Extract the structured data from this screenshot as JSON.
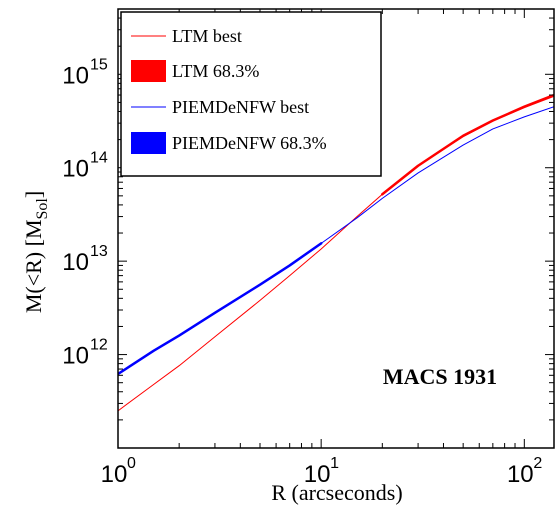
{
  "chart_data": {
    "type": "line",
    "xlabel": "R (arcseconds)",
    "ylabel_main": "M(<R)  [M",
    "ylabel_sub": "Sol",
    "ylabel_close": "]",
    "annotation": "MACS 1931",
    "xscale": "log",
    "yscale": "log",
    "xlim": [
      1,
      140
    ],
    "ylim": [
      100000000000.0,
      5000000000000000.0
    ],
    "grid": false,
    "legend_position": "top-left",
    "x_ticks": [
      {
        "value": 1,
        "base": "10",
        "exp": "0"
      },
      {
        "value": 10,
        "base": "10",
        "exp": "1"
      },
      {
        "value": 100,
        "base": "10",
        "exp": "2"
      }
    ],
    "y_ticks": [
      {
        "value": 1000000000000.0,
        "base": "10",
        "exp": "12"
      },
      {
        "value": 10000000000000.0,
        "base": "10",
        "exp": "13"
      },
      {
        "value": 100000000000000.0,
        "base": "10",
        "exp": "14"
      },
      {
        "value": 1000000000000000.0,
        "base": "10",
        "exp": "15"
      }
    ],
    "legend": [
      {
        "label": "LTM best",
        "style": "line",
        "color": "#ff0000"
      },
      {
        "label": "LTM 68.3%",
        "style": "patch",
        "color": "#ff0000"
      },
      {
        "label": "PIEMDeNFW best",
        "style": "line",
        "color": "#0000ff"
      },
      {
        "label": "PIEMDeNFW 68.3%",
        "style": "patch",
        "color": "#0000ff"
      }
    ],
    "series": [
      {
        "name": "LTM best",
        "color": "#ff0000",
        "width": 1,
        "x": [
          1,
          1.5,
          2,
          3,
          5,
          7,
          10,
          15,
          20,
          30,
          50,
          70,
          100,
          140
        ],
        "y": [
          250000000000.0,
          480000000000.0,
          760000000000.0,
          1550000000000.0,
          3800000000000.0,
          7000000000000.0,
          13500000000000.0,
          30000000000000.0,
          52000000000000.0,
          105000000000000.0,
          215000000000000.0,
          315000000000000.0,
          440000000000000.0,
          580000000000000.0
        ]
      },
      {
        "name": "LTM 68.3%",
        "color": "#ff0000",
        "width": 2.5,
        "x": [
          20,
          30,
          50,
          70,
          100,
          140
        ],
        "y": [
          52000000000000.0,
          105000000000000.0,
          220000000000000.0,
          320000000000000.0,
          450000000000000.0,
          600000000000000.0
        ]
      },
      {
        "name": "PIEMDeNFW best",
        "color": "#0000ff",
        "width": 1,
        "x": [
          1,
          1.5,
          2,
          3,
          5,
          7,
          10,
          15,
          20,
          30,
          50,
          70,
          100,
          140
        ],
        "y": [
          620000000000.0,
          1100000000000.0,
          1600000000000.0,
          2800000000000.0,
          5600000000000.0,
          9000000000000.0,
          15500000000000.0,
          29000000000000.0,
          47000000000000.0,
          88000000000000.0,
          175000000000000.0,
          260000000000000.0,
          350000000000000.0,
          450000000000000.0
        ]
      },
      {
        "name": "PIEMDeNFW 68.3%",
        "color": "#0000ff",
        "width": 2.5,
        "x": [
          1,
          1.5,
          2,
          3,
          5,
          7,
          10
        ],
        "y": [
          620000000000.0,
          1100000000000.0,
          1600000000000.0,
          2800000000000.0,
          5600000000000.0,
          9000000000000.0,
          15500000000000.0
        ]
      }
    ]
  }
}
